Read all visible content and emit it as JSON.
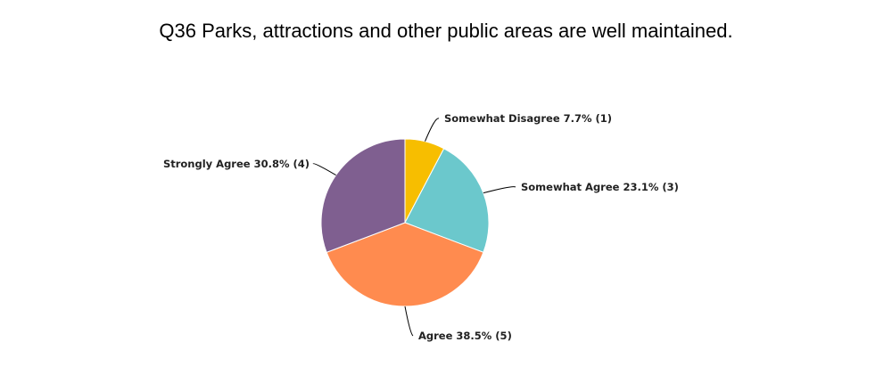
{
  "chart_data": {
    "type": "pie",
    "title": "Q36 Parks, attractions and other public areas are well maintained.",
    "slices": [
      {
        "name": "Somewhat Disagree",
        "percent": 7.7,
        "count": 1,
        "label": "Somewhat Disagree 7.7% (1)",
        "color": "#F7BE00"
      },
      {
        "name": "Somewhat Agree",
        "percent": 23.1,
        "count": 3,
        "label": "Somewhat Agree 23.1% (3)",
        "color": "#6BC8CC"
      },
      {
        "name": "Agree",
        "percent": 38.5,
        "count": 5,
        "label": "Agree 38.5% (5)",
        "color": "#FF8B4F"
      },
      {
        "name": "Strongly Agree",
        "percent": 30.8,
        "count": 4,
        "label": "Strongly Agree 30.8% (4)",
        "color": "#7F5F90"
      }
    ]
  }
}
